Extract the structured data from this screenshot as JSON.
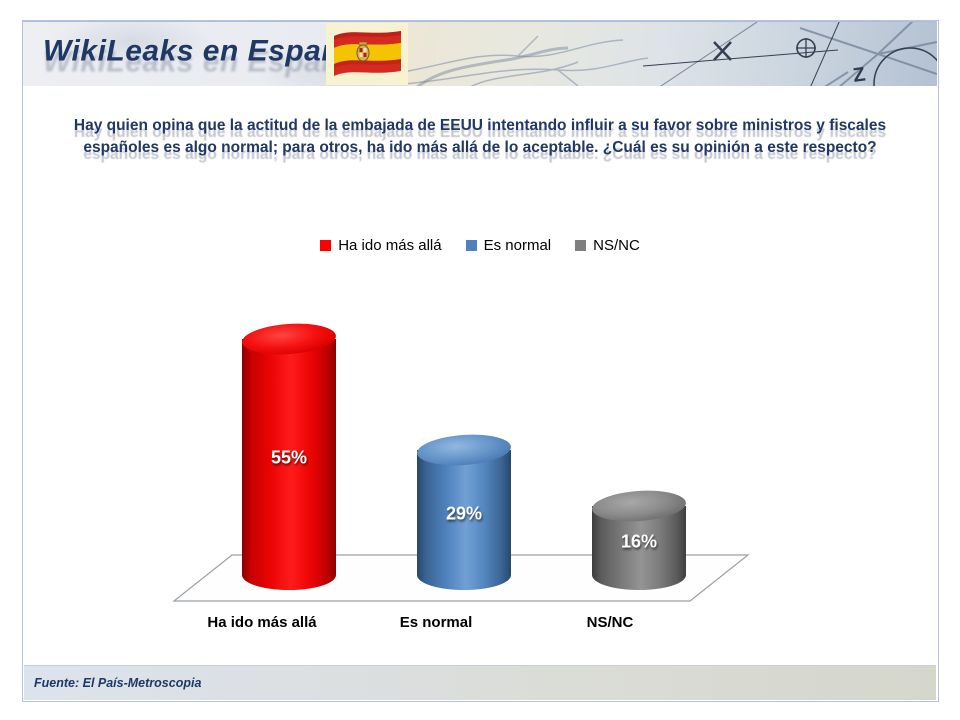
{
  "slide": {
    "header": {
      "title": "WikiLeaks en España"
    },
    "question": "Hay quien opina que la actitud de la embajada de EEUU intentando influir a su favor sobre ministros y fiscales españoles es algo normal; para otros, ha ido más allá de lo aceptable. ¿Cuál es su opinión a este respecto?",
    "footer": {
      "source": "Fuente: El País-Metroscopia"
    }
  },
  "chart_data": {
    "type": "bar",
    "subtype": "3d_cylinder",
    "title": "",
    "categories": [
      "Ha ido más allá",
      "Es normal",
      "NS/NC"
    ],
    "values": [
      55,
      29,
      16
    ],
    "value_labels": [
      "55%",
      "29%",
      "16%"
    ],
    "unit": "%",
    "series_colors": [
      "#ee0000",
      "#4f81bd",
      "#7f7f7f"
    ],
    "legend": [
      {
        "label": "Ha ido más allá",
        "color": "#ff0000"
      },
      {
        "label": "Es normal",
        "color": "#4f81bd"
      },
      {
        "label": "NS/NC",
        "color": "#7f7f7f"
      }
    ],
    "legend_position": "top",
    "axes": "none",
    "grid": false,
    "value_label_color": "#ffffff",
    "category_label_color": "#000000"
  },
  "theme": {
    "accent_navy": "#1f3864",
    "footer_bg": "#dde3ed",
    "frame_border": "#b6c2de"
  }
}
